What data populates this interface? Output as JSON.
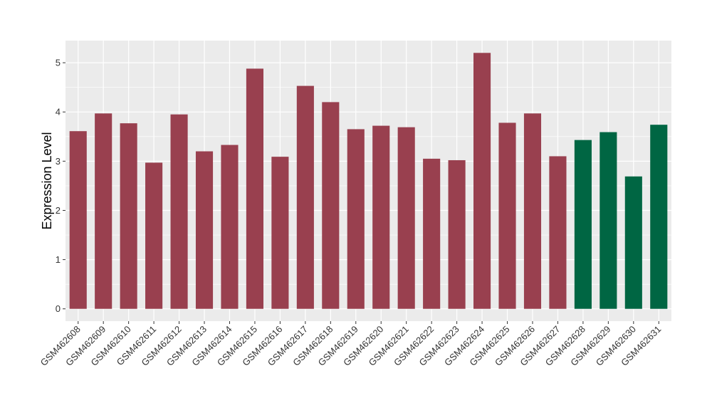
{
  "chart_data": {
    "type": "bar",
    "title": "",
    "xlabel": "",
    "ylabel": "Expression Level",
    "ylim": [
      -0.25,
      5.45
    ],
    "yticks": [
      0,
      1,
      2,
      3,
      4,
      5
    ],
    "grid": true,
    "categories": [
      "GSM462608",
      "GSM462609",
      "GSM462610",
      "GSM462611",
      "GSM462612",
      "GSM462613",
      "GSM462614",
      "GSM462615",
      "GSM462616",
      "GSM462617",
      "GSM462618",
      "GSM462619",
      "GSM462620",
      "GSM462621",
      "GSM462622",
      "GSM462623",
      "GSM462624",
      "GSM462625",
      "GSM462626",
      "GSM462627",
      "GSM462628",
      "GSM462629",
      "GSM462630",
      "GSM462631"
    ],
    "values": [
      3.61,
      3.97,
      3.77,
      2.97,
      3.95,
      3.2,
      3.33,
      4.88,
      3.09,
      4.53,
      4.2,
      3.65,
      3.72,
      3.69,
      3.05,
      3.02,
      5.2,
      3.78,
      3.97,
      3.1,
      3.43,
      3.59,
      2.69,
      3.74
    ],
    "bar_colors": [
      "#99404f",
      "#99404f",
      "#99404f",
      "#99404f",
      "#99404f",
      "#99404f",
      "#99404f",
      "#99404f",
      "#99404f",
      "#99404f",
      "#99404f",
      "#99404f",
      "#99404f",
      "#99404f",
      "#99404f",
      "#99404f",
      "#99404f",
      "#99404f",
      "#99404f",
      "#99404f",
      "#006643",
      "#006643",
      "#006643",
      "#006643"
    ],
    "panel_background": "#ebebeb",
    "grid_color": "#ffffff"
  }
}
